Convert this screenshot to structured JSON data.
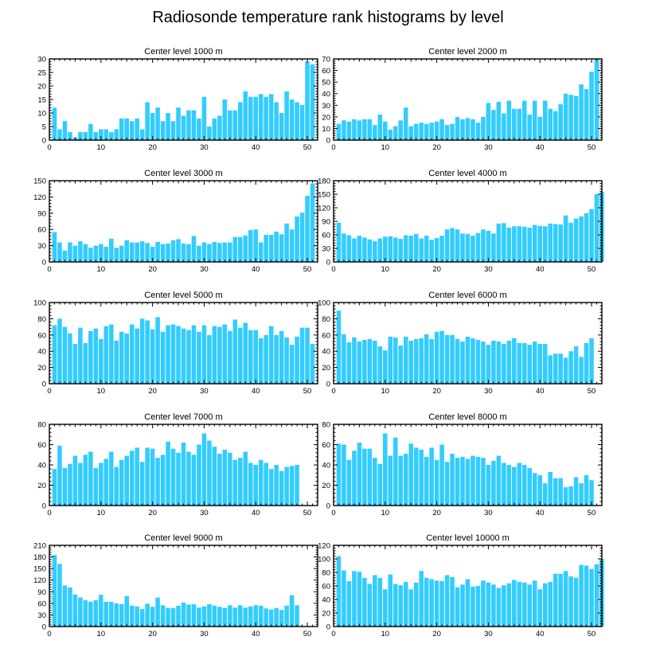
{
  "title": "Radiosonde temperature rank histograms by level",
  "bar_color": "#33ccff",
  "chart_data": [
    {
      "type": "bar",
      "title": "Center level 1000 m",
      "xlim": [
        0,
        52
      ],
      "ylim": [
        0,
        30
      ],
      "xticks": [
        0,
        10,
        20,
        30,
        40,
        50
      ],
      "yticks": [
        0,
        5,
        10,
        15,
        20,
        25,
        30
      ],
      "values": [
        12,
        4,
        7,
        3,
        1,
        3,
        3,
        6,
        3,
        4,
        4,
        3,
        4,
        8,
        8,
        7,
        8,
        4,
        14,
        10,
        12,
        7,
        10,
        7,
        12,
        9,
        11,
        11,
        8,
        16,
        5,
        8,
        9,
        15,
        11,
        11,
        14,
        18,
        16,
        16,
        17,
        16,
        17,
        14,
        10,
        18,
        15,
        14,
        13,
        29,
        28
      ]
    },
    {
      "type": "bar",
      "title": "Center level 2000 m",
      "xlim": [
        0,
        52
      ],
      "ylim": [
        0,
        70
      ],
      "xticks": [
        0,
        10,
        20,
        30,
        40,
        50
      ],
      "yticks": [
        0,
        10,
        20,
        30,
        40,
        50,
        60,
        70
      ],
      "values": [
        14,
        17,
        16,
        18,
        17,
        18,
        18,
        13,
        22,
        16,
        9,
        12,
        17,
        28,
        12,
        14,
        15,
        14,
        15,
        16,
        18,
        13,
        14,
        20,
        18,
        19,
        18,
        15,
        20,
        32,
        26,
        33,
        23,
        34,
        27,
        27,
        34,
        22,
        34,
        20,
        34,
        27,
        25,
        31,
        40,
        39,
        38,
        48,
        44,
        59,
        70
      ]
    },
    {
      "type": "bar",
      "title": "Center level 3000 m",
      "xlim": [
        0,
        52
      ],
      "ylim": [
        0,
        150
      ],
      "xticks": [
        0,
        10,
        20,
        30,
        40,
        50
      ],
      "yticks": [
        0,
        30,
        60,
        90,
        120,
        150
      ],
      "values": [
        55,
        36,
        21,
        36,
        30,
        38,
        33,
        26,
        30,
        33,
        28,
        43,
        26,
        30,
        40,
        36,
        36,
        38,
        35,
        28,
        37,
        33,
        34,
        40,
        42,
        34,
        33,
        48,
        30,
        36,
        33,
        37,
        35,
        36,
        36,
        46,
        46,
        49,
        59,
        60,
        36,
        50,
        50,
        56,
        51,
        71,
        60,
        84,
        91,
        122,
        145
      ]
    },
    {
      "type": "bar",
      "title": "Center level 4000 m",
      "xlim": [
        0,
        52
      ],
      "ylim": [
        0,
        180
      ],
      "xticks": [
        0,
        10,
        20,
        30,
        40,
        50
      ],
      "yticks": [
        0,
        30,
        60,
        90,
        120,
        150,
        180
      ],
      "values": [
        87,
        63,
        59,
        52,
        58,
        54,
        50,
        46,
        52,
        56,
        57,
        54,
        51,
        59,
        58,
        62,
        52,
        58,
        49,
        53,
        58,
        72,
        75,
        72,
        63,
        62,
        58,
        64,
        72,
        69,
        63,
        85,
        86,
        76,
        79,
        79,
        78,
        76,
        82,
        80,
        79,
        85,
        84,
        83,
        103,
        87,
        96,
        101,
        108,
        117,
        150,
        155
      ]
    },
    {
      "type": "bar",
      "title": "Center level 5000 m",
      "xlim": [
        0,
        52
      ],
      "ylim": [
        0,
        100
      ],
      "xticks": [
        0,
        10,
        20,
        30,
        40,
        50
      ],
      "yticks": [
        0,
        20,
        40,
        60,
        80,
        100
      ],
      "values": [
        72,
        80,
        70,
        62,
        49,
        69,
        50,
        65,
        68,
        55,
        71,
        73,
        53,
        64,
        62,
        73,
        68,
        80,
        78,
        67,
        82,
        64,
        72,
        73,
        71,
        68,
        66,
        72,
        64,
        72,
        60,
        71,
        70,
        73,
        65,
        79,
        69,
        75,
        66,
        66,
        56,
        60,
        71,
        60,
        65,
        57,
        48,
        58,
        69,
        69,
        49
      ]
    },
    {
      "type": "bar",
      "title": "Center level 6000 m",
      "xlim": [
        0,
        52
      ],
      "ylim": [
        0,
        100
      ],
      "xticks": [
        0,
        10,
        20,
        30,
        40,
        50
      ],
      "yticks": [
        0,
        20,
        40,
        60,
        80,
        100
      ],
      "values": [
        90,
        61,
        51,
        57,
        52,
        54,
        55,
        53,
        46,
        41,
        58,
        57,
        47,
        58,
        53,
        55,
        56,
        61,
        55,
        64,
        65,
        60,
        60,
        55,
        52,
        58,
        56,
        54,
        52,
        48,
        53,
        52,
        49,
        53,
        56,
        50,
        50,
        48,
        52,
        49,
        49,
        35,
        37,
        37,
        32,
        40,
        46,
        33,
        50,
        56
      ]
    },
    {
      "type": "bar",
      "title": "Center level 7000 m",
      "xlim": [
        0,
        52
      ],
      "ylim": [
        0,
        80
      ],
      "xticks": [
        0,
        10,
        20,
        30,
        40,
        50
      ],
      "yticks": [
        0,
        20,
        40,
        60,
        80
      ],
      "values": [
        36,
        59,
        37,
        41,
        49,
        42,
        50,
        53,
        37,
        42,
        46,
        53,
        38,
        45,
        49,
        54,
        57,
        43,
        57,
        56,
        47,
        50,
        63,
        56,
        52,
        62,
        53,
        50,
        60,
        71,
        64,
        58,
        51,
        55,
        52,
        45,
        47,
        53,
        42,
        40,
        45,
        42,
        36,
        40,
        34,
        38,
        39,
        40
      ]
    },
    {
      "type": "bar",
      "title": "Center level 8000 m",
      "xlim": [
        0,
        52
      ],
      "ylim": [
        0,
        80
      ],
      "xticks": [
        0,
        10,
        20,
        30,
        40,
        50
      ],
      "yticks": [
        0,
        20,
        40,
        60,
        80
      ],
      "values": [
        61,
        60,
        45,
        54,
        62,
        56,
        56,
        47,
        41,
        71,
        49,
        67,
        49,
        51,
        61,
        57,
        55,
        48,
        57,
        45,
        60,
        43,
        51,
        47,
        48,
        46,
        49,
        48,
        47,
        40,
        44,
        49,
        42,
        40,
        38,
        42,
        40,
        37,
        32,
        30,
        22,
        33,
        27,
        27,
        18,
        19,
        28,
        22,
        30,
        25
      ]
    },
    {
      "type": "bar",
      "title": "Center level 9000 m",
      "xlim": [
        0,
        52
      ],
      "ylim": [
        0,
        210
      ],
      "xticks": [
        0,
        10,
        20,
        30,
        40,
        50
      ],
      "yticks": [
        0,
        30,
        60,
        90,
        120,
        150,
        180,
        210
      ],
      "values": [
        185,
        162,
        106,
        101,
        83,
        75,
        68,
        64,
        68,
        82,
        64,
        64,
        60,
        58,
        79,
        54,
        52,
        45,
        59,
        51,
        75,
        55,
        48,
        48,
        54,
        62,
        57,
        58,
        49,
        52,
        58,
        54,
        51,
        48,
        55,
        49,
        55,
        49,
        52,
        55,
        54,
        47,
        44,
        48,
        43,
        54,
        81,
        55
      ]
    },
    {
      "type": "bar",
      "title": "Center level 10000 m",
      "xlim": [
        0,
        52
      ],
      "ylim": [
        0,
        120
      ],
      "xticks": [
        0,
        10,
        20,
        30,
        40,
        50
      ],
      "yticks": [
        0,
        20,
        40,
        60,
        80,
        100,
        120
      ],
      "values": [
        104,
        83,
        67,
        82,
        81,
        72,
        63,
        76,
        72,
        55,
        77,
        63,
        61,
        66,
        55,
        65,
        82,
        72,
        70,
        68,
        67,
        76,
        73,
        58,
        62,
        70,
        59,
        60,
        68,
        65,
        62,
        57,
        61,
        64,
        69,
        66,
        65,
        62,
        68,
        55,
        64,
        66,
        78,
        78,
        82,
        74,
        72,
        91,
        90,
        85,
        92,
        100
      ]
    }
  ]
}
